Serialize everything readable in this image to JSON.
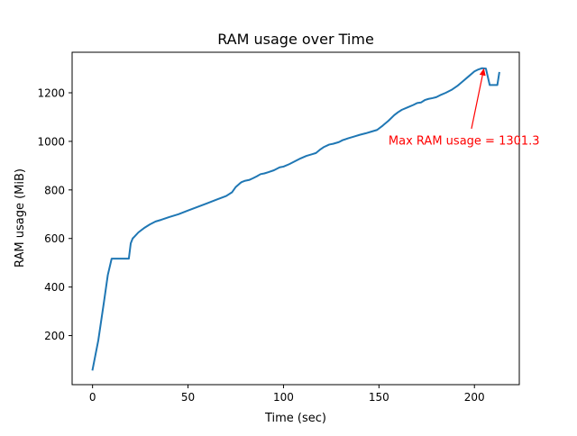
{
  "chart_data": {
    "type": "line",
    "title": "RAM usage over Time",
    "xlabel": "Time (sec)",
    "ylabel": "RAM usage (MiB)",
    "xlim": [
      -10.7,
      223.5
    ],
    "ylim": [
      -2,
      1367
    ],
    "xticks": [
      0,
      50,
      100,
      150,
      200
    ],
    "yticks": [
      200,
      400,
      600,
      800,
      1000,
      1200
    ],
    "grid": false,
    "line_color": "#1f77b4",
    "annotation": {
      "text": "Max RAM usage = 1301.3",
      "point": [
        205.0,
        1301.3
      ],
      "text_at": [
        155.0,
        1000
      ],
      "color": "#ff0000"
    },
    "series": [
      {
        "x": [
          0,
          3,
          6,
          8,
          10,
          12,
          15,
          19,
          20,
          21,
          22,
          24,
          27,
          30,
          33,
          36,
          40,
          45,
          50,
          55,
          60,
          65,
          70,
          73,
          75,
          77,
          78,
          80,
          82,
          84,
          86,
          88,
          90,
          92,
          95,
          98,
          100,
          103,
          106,
          109,
          112,
          115,
          117,
          119,
          121,
          124,
          126,
          129,
          131,
          134,
          137,
          140,
          143,
          146,
          149,
          152,
          155,
          158,
          160,
          162,
          165,
          168,
          170,
          172,
          174,
          176,
          178,
          180,
          182,
          185,
          188,
          191,
          194,
          197,
          200,
          202,
          204,
          206,
          208,
          210,
          212,
          213
        ],
        "y": [
          60,
          180,
          340,
          450,
          517,
          517,
          517,
          517,
          580,
          600,
          608,
          625,
          643,
          658,
          670,
          677,
          688,
          700,
          715,
          730,
          745,
          760,
          775,
          790,
          812,
          826,
          832,
          838,
          841,
          848,
          856,
          865,
          868,
          873,
          881,
          893,
          896,
          906,
          918,
          930,
          940,
          947,
          952,
          965,
          976,
          987,
          990,
          997,
          1005,
          1013,
          1020,
          1027,
          1033,
          1040,
          1047,
          1065,
          1085,
          1108,
          1120,
          1130,
          1140,
          1150,
          1158,
          1160,
          1170,
          1175,
          1178,
          1182,
          1190,
          1200,
          1212,
          1228,
          1248,
          1268,
          1288,
          1296,
          1301.3,
          1300,
          1232,
          1232,
          1232,
          1282
        ]
      }
    ]
  }
}
